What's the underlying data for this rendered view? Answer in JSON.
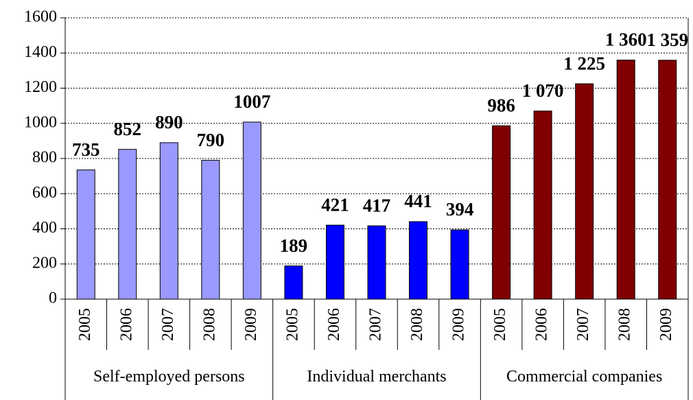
{
  "chart_data": {
    "type": "bar",
    "series": [
      {
        "name": "Self-employed persons",
        "color": "#9999ff",
        "categories": [
          "2005",
          "2006",
          "2007",
          "2008",
          "2009"
        ],
        "values": [
          735,
          852,
          890,
          790,
          1007
        ]
      },
      {
        "name": "Individual merchants",
        "color": "#0000ff",
        "categories": [
          "2005",
          "2006",
          "2007",
          "2008",
          "2009"
        ],
        "values": [
          189,
          421,
          417,
          441,
          394
        ]
      },
      {
        "name": "Commercial companies",
        "color": "#800000",
        "categories": [
          "2005",
          "2006",
          "2007",
          "2008",
          "2009"
        ],
        "values": [
          986,
          1070,
          1225,
          1360,
          1359
        ],
        "value_labels": [
          "986",
          "1 070",
          "1 225",
          "1 360",
          "1 359"
        ]
      }
    ],
    "ylim": [
      0,
      1600
    ],
    "yticks": [
      0,
      200,
      400,
      600,
      800,
      1000,
      1200,
      1400,
      1600
    ],
    "grid": true
  }
}
